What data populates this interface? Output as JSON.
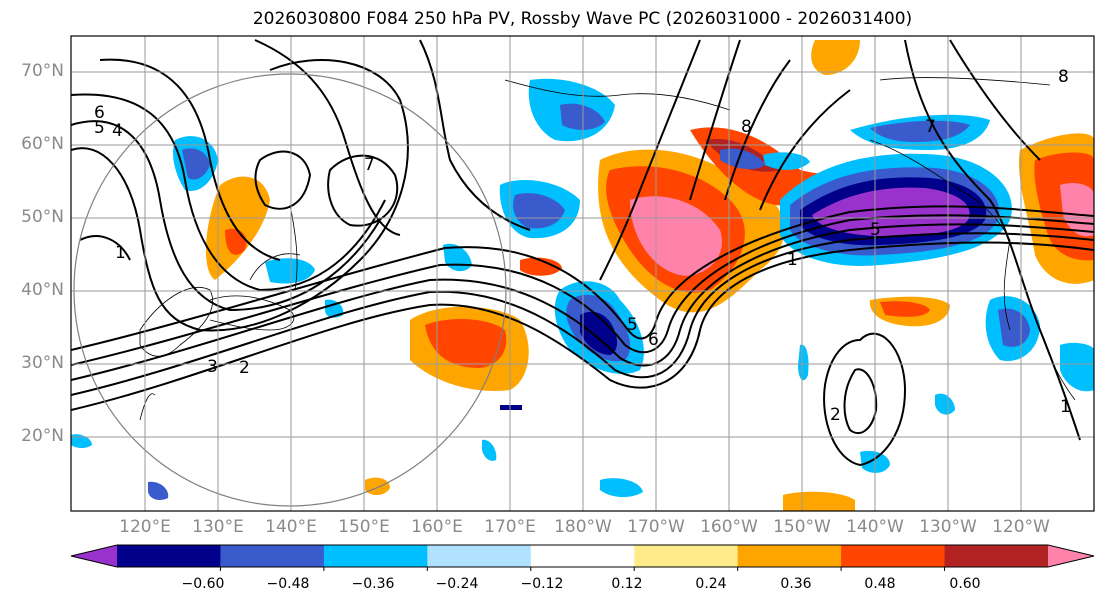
{
  "title": "2026030800 F084 250 hPa PV, Rossby Wave PC (2026031000 - 2026031400)",
  "lat_labels": [
    "70°N",
    "60°N",
    "50°N",
    "40°N",
    "30°N",
    "20°N"
  ],
  "lon_labels": [
    "120°E",
    "130°E",
    "140°E",
    "150°E",
    "160°E",
    "170°E",
    "180°W",
    "170°W",
    "160°W",
    "150°W",
    "140°W",
    "130°W",
    "120°W"
  ],
  "colorbar": {
    "colors": [
      "#9932cc",
      "#00008b",
      "#3a5bcc",
      "#00bfff",
      "#b0e2ff",
      "#ffffff",
      "#ffeb8a",
      "#ffa500",
      "#ff4500",
      "#b22222",
      "#ff82ab"
    ],
    "tick_labels": [
      "−0.60",
      "−0.48",
      "−0.36",
      "−0.24",
      "−0.12",
      "0.12",
      "0.24",
      "0.36",
      "0.48",
      "0.60"
    ]
  },
  "contour_labels": [
    "6",
    "5",
    "4",
    "3",
    "2",
    "1",
    "7",
    "7",
    "5",
    "6",
    "8",
    "5",
    "1",
    "2",
    "1",
    "8"
  ]
}
